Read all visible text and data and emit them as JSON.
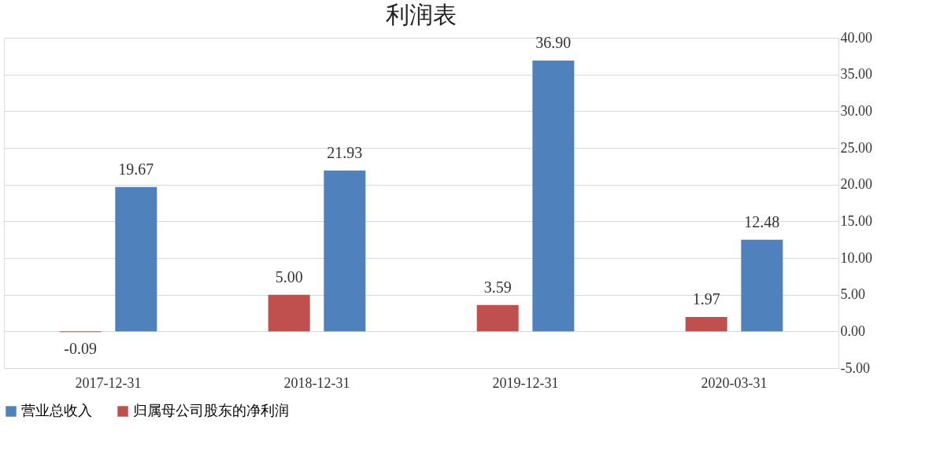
{
  "chart_data": {
    "type": "bar",
    "title": "利润表",
    "categories": [
      "2017-12-31",
      "2018-12-31",
      "2019-12-31",
      "2020-03-31"
    ],
    "series": [
      {
        "name": "营业总收入",
        "color": "#4f81bd",
        "values": [
          19.67,
          21.93,
          36.9,
          12.48
        ],
        "value_labels": [
          "19.67",
          "21.93",
          "36.90",
          "12.48"
        ]
      },
      {
        "name": "归属母公司股东的净利润",
        "color": "#c0504d",
        "values": [
          -0.09,
          5.0,
          3.59,
          1.97
        ],
        "value_labels": [
          "-0.09",
          "5.00",
          "3.59",
          "1.97"
        ]
      }
    ],
    "ylim": [
      -5,
      40
    ],
    "yticks": [
      {
        "value": -5,
        "label": "-5.00"
      },
      {
        "value": 0,
        "label": "0.00"
      },
      {
        "value": 5,
        "label": "5.00"
      },
      {
        "value": 10,
        "label": "10.00"
      },
      {
        "value": 15,
        "label": "15.00"
      },
      {
        "value": 20,
        "label": "20.00"
      },
      {
        "value": 25,
        "label": "25.00"
      },
      {
        "value": 30,
        "label": "30.00"
      },
      {
        "value": 35,
        "label": "35.00"
      },
      {
        "value": 40,
        "label": "40.00"
      }
    ],
    "grid": "y",
    "legend": "bottom"
  }
}
